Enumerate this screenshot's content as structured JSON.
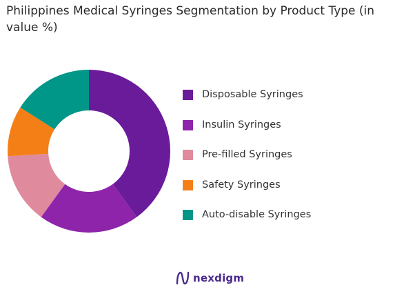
{
  "chart_data": {
    "type": "pie",
    "title": "Philippines Medical Syringes Segmentation by Product Type (in value %)",
    "categories": [
      "Disposable Syringes",
      "Insulin Syringes",
      "Pre-filled Syringes",
      "Safety Syringes",
      "Auto-disable Syringes"
    ],
    "values": [
      40,
      20,
      14,
      10,
      16
    ],
    "colors": [
      "#6a1b9a",
      "#8e24aa",
      "#e08a9e",
      "#f57f17",
      "#009688"
    ],
    "hole": 0.5,
    "legend_position": "right"
  },
  "brand": {
    "name": "nexdigm",
    "icon": "nexdigm-logo-icon",
    "color": "#4b2a8c"
  }
}
